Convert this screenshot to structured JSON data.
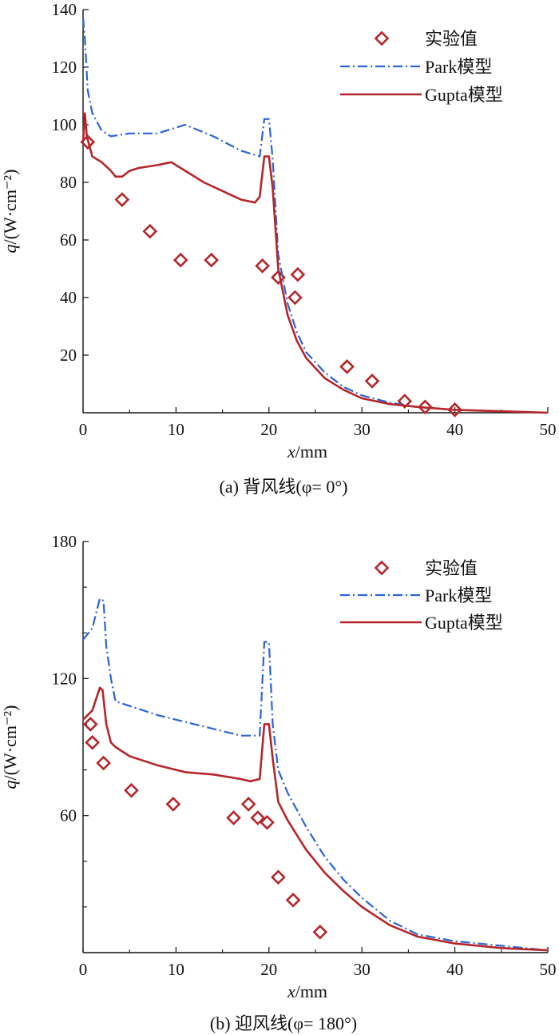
{
  "chart_data": [
    {
      "type": "line",
      "caption": "(a) 背风线(φ= 0°)",
      "xlabel_var": "x",
      "xlabel_unit": "/mm",
      "ylabel_var": "q",
      "ylabel_unit": "/(W·cm⁻²)",
      "xlim": [
        0,
        50
      ],
      "ylim": [
        0,
        140
      ],
      "xticks": [
        0,
        10,
        20,
        30,
        40,
        50
      ],
      "yticks": [
        20,
        40,
        60,
        80,
        100,
        120,
        140
      ],
      "legend": {
        "experiment": "实验值",
        "park": "Park模型",
        "gupta": "Gupta模型"
      },
      "series": [
        {
          "name": "实验值",
          "style": "diamond",
          "x": [
            0.5,
            4.2,
            7.2,
            10.5,
            13.8,
            19.3,
            21.0,
            22.8,
            23.1,
            28.4,
            31.1,
            34.6,
            36.8,
            40.0
          ],
          "y": [
            94,
            74,
            63,
            53,
            53,
            51,
            47,
            40,
            48,
            16,
            11,
            4,
            2,
            1
          ]
        },
        {
          "name": "Park模型",
          "style": "dashdot",
          "x": [
            0,
            0.2,
            0.5,
            1.0,
            2.0,
            3.0,
            5.0,
            8.0,
            11.0,
            14.0,
            17.0,
            19.0,
            19.5,
            20.0,
            20.4,
            21.0,
            22.0,
            23.0,
            24.0,
            26.0,
            28.0,
            30.0,
            33.0,
            36.0,
            40.0,
            45.0,
            50.0
          ],
          "y": [
            137,
            130,
            112,
            104,
            98,
            96,
            97,
            97,
            100,
            96,
            91,
            89,
            102,
            102,
            88,
            55,
            38,
            28,
            21,
            14,
            9,
            6,
            3.5,
            2,
            1,
            0.5,
            0
          ]
        },
        {
          "name": "Gupta模型",
          "style": "solid",
          "x": [
            0,
            0.2,
            0.4,
            1.0,
            2.0,
            3.0,
            3.5,
            4.2,
            5.0,
            6.0,
            8.0,
            9.5,
            11.0,
            13.0,
            15.0,
            17.0,
            18.5,
            19.0,
            19.5,
            20.0,
            20.4,
            21.0,
            22.0,
            23.0,
            24.0,
            26.0,
            28.0,
            30.0,
            33.0,
            36.0,
            40.0,
            45.0,
            50.0
          ],
          "y": [
            94,
            104,
            96,
            89,
            87,
            84,
            82,
            82,
            84,
            85,
            86,
            87,
            84,
            80,
            77,
            74,
            73,
            75,
            89,
            89,
            78,
            50,
            34,
            25,
            19,
            12,
            8,
            5,
            3,
            2,
            1,
            0.5,
            0
          ]
        }
      ]
    },
    {
      "type": "line",
      "caption": "(b) 迎风线(φ= 180°)",
      "xlabel_var": "x",
      "xlabel_unit": "/mm",
      "ylabel_var": "q",
      "ylabel_unit": "/(W·cm⁻²)",
      "xlim": [
        0,
        50
      ],
      "ylim": [
        0,
        180
      ],
      "xticks": [
        0,
        10,
        20,
        30,
        40,
        50
      ],
      "yticks": [
        60,
        120,
        180
      ],
      "minor_yticks": [
        20,
        40,
        80,
        100,
        140,
        160
      ],
      "legend": {
        "experiment": "实验值",
        "park": "Park模型",
        "gupta": "Gupta模型"
      },
      "series": [
        {
          "name": "实验值",
          "style": "diamond",
          "x": [
            0.8,
            1.0,
            2.2,
            5.2,
            9.7,
            16.2,
            17.8,
            18.8,
            19.8,
            21.0,
            22.6,
            25.5
          ],
          "y": [
            100,
            92,
            83,
            71,
            65,
            59,
            65,
            59,
            57,
            33,
            23,
            9
          ]
        },
        {
          "name": "Park模型",
          "style": "dashdot",
          "x": [
            0,
            1.0,
            1.8,
            2.2,
            2.5,
            3.0,
            3.5,
            5.0,
            8.0,
            11.0,
            14.0,
            17.0,
            19.0,
            19.5,
            20.0,
            20.4,
            21.0,
            22.0,
            24.0,
            26.0,
            28.0,
            30.0,
            33.0,
            36.0,
            40.0,
            45.0,
            50.0
          ],
          "y": [
            137,
            142,
            155,
            154,
            134,
            120,
            110,
            108,
            104,
            101,
            98,
            95,
            95,
            136,
            136,
            100,
            80,
            70,
            55,
            42,
            32,
            24,
            14,
            8,
            5,
            3,
            1
          ]
        },
        {
          "name": "Gupta模型",
          "style": "solid",
          "x": [
            0,
            1.0,
            1.8,
            2.1,
            2.5,
            3.0,
            3.5,
            5.0,
            8.0,
            11.0,
            14.0,
            17.0,
            18.0,
            19.0,
            19.5,
            20.0,
            20.4,
            21.0,
            22.0,
            24.0,
            26.0,
            28.0,
            30.0,
            33.0,
            36.0,
            40.0,
            45.0,
            50.0
          ],
          "y": [
            102,
            106,
            116,
            115,
            100,
            92,
            90,
            86,
            82,
            79,
            78,
            76,
            75,
            76,
            100,
            100,
            85,
            66,
            58,
            45,
            35,
            27,
            20,
            12,
            7,
            4,
            2,
            1
          ]
        }
      ]
    }
  ]
}
